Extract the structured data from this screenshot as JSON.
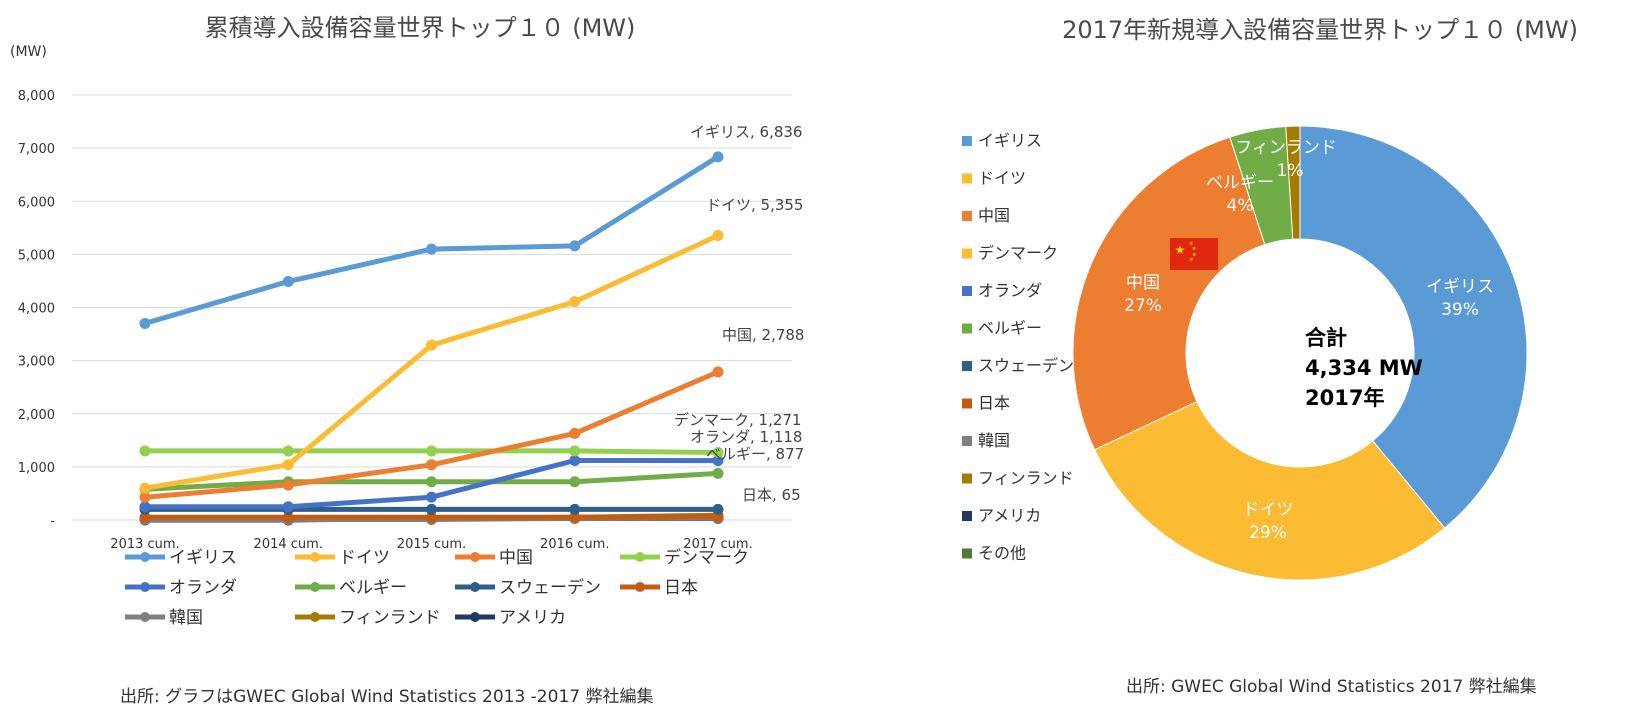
{
  "chart_data": [
    {
      "type": "line",
      "title": "累積導入設備容量世界トップ１０ (MW)",
      "ylabel": "(MW)",
      "ylim": [
        0,
        8000
      ],
      "yticks": [
        {
          "value": 0,
          "label": "-"
        },
        {
          "value": 1000,
          "label": "1,000"
        },
        {
          "value": 2000,
          "label": "2,000"
        },
        {
          "value": 3000,
          "label": "3,000"
        },
        {
          "value": 4000,
          "label": "4,000"
        },
        {
          "value": 5000,
          "label": "5,000"
        },
        {
          "value": 6000,
          "label": "6,000"
        },
        {
          "value": 7000,
          "label": "7,000"
        },
        {
          "value": 8000,
          "label": "8,000"
        }
      ],
      "categories": [
        "2013 cum.",
        "2014 cum.",
        "2015 cum.",
        "2016 cum.",
        "2017 cum."
      ],
      "series": [
        {
          "name": "イギリス",
          "color": "#5b9bd5",
          "values": [
            3700,
            4490,
            5100,
            5160,
            6836
          ],
          "label": "イギリス, 6,836"
        },
        {
          "name": "ドイツ",
          "color": "#fbbc33",
          "values": [
            600,
            1040,
            3290,
            4110,
            5355
          ],
          "label": "ドイツ, 5,355"
        },
        {
          "name": "中国",
          "color": "#ed7d31",
          "values": [
            430,
            660,
            1040,
            1630,
            2788
          ],
          "label": "中国, 2,788"
        },
        {
          "name": "デンマーク",
          "color": "#92d050",
          "values": [
            1300,
            1300,
            1300,
            1300,
            1271
          ],
          "label": "デンマーク, 1,271"
        },
        {
          "name": "オランダ",
          "color": "#4472c4",
          "values": [
            250,
            250,
            430,
            1120,
            1118
          ],
          "label": "オランダ, 1,118"
        },
        {
          "name": "ベルギー",
          "color": "#70ad47",
          "values": [
            580,
            720,
            720,
            720,
            877
          ],
          "label": "ベルギー, 877"
        },
        {
          "name": "スウェーデン",
          "color": "#2e5f8a",
          "values": [
            200,
            200,
            200,
            200,
            200
          ],
          "label": ""
        },
        {
          "name": "日本",
          "color": "#c55a11",
          "values": [
            50,
            50,
            50,
            50,
            65
          ],
          "label": "日本, 65"
        },
        {
          "name": "韓国",
          "color": "#7f7f7f",
          "values": [
            10,
            10,
            10,
            30,
            40
          ],
          "label": ""
        },
        {
          "name": "フィンランド",
          "color": "#a67c00",
          "values": [
            30,
            30,
            30,
            50,
            90
          ],
          "label": ""
        },
        {
          "name": "アメリカ",
          "color": "#203864",
          "values": [
            0,
            0,
            30,
            30,
            30
          ],
          "label": ""
        }
      ],
      "legend_position": "bottom",
      "source": "出所: グラフはGWEC Global Wind Statistics 2013 -2017 弊社編集"
    },
    {
      "type": "pie",
      "title": "2017年新規導入設備容量世界トップ１０ (MW)",
      "slices": [
        {
          "name": "イギリス",
          "value": 39,
          "color": "#5b9bd5",
          "label": "イギリス",
          "pct": "39%"
        },
        {
          "name": "ドイツ",
          "value": 29,
          "color": "#fbbc33",
          "label": "ドイツ",
          "pct": "29%"
        },
        {
          "name": "中国",
          "value": 27,
          "color": "#ed7d31",
          "label": "中国",
          "pct": "27%"
        },
        {
          "name": "ベルギー",
          "value": 4,
          "color": "#70ad47",
          "label": "ベルギー",
          "pct": "4%"
        },
        {
          "name": "フィンランド",
          "value": 1,
          "color": "#a67c00",
          "label": "フィンランド",
          "pct": "1%"
        }
      ],
      "legend": [
        {
          "name": "イギリス",
          "color": "#5b9bd5"
        },
        {
          "name": "ドイツ",
          "color": "#fbbc33"
        },
        {
          "name": "中国",
          "color": "#ed7d31"
        },
        {
          "name": "デンマーク",
          "color": "#fbbc33"
        },
        {
          "name": "オランダ",
          "color": "#4472c4"
        },
        {
          "name": "ベルギー",
          "color": "#70ad47"
        },
        {
          "name": "スウェーデン",
          "color": "#2e5f8a"
        },
        {
          "name": "日本",
          "color": "#c55a11"
        },
        {
          "name": "韓国",
          "color": "#7f7f7f"
        },
        {
          "name": "フィンランド",
          "color": "#a67c00"
        },
        {
          "name": "アメリカ",
          "color": "#203864"
        },
        {
          "name": "その他",
          "color": "#4e7a32"
        }
      ],
      "legend_position": "left",
      "center": {
        "line1": "合計",
        "line2": "4,334 MW",
        "line3": "2017年"
      },
      "source": "出所: GWEC Global Wind Statistics 2017 弊社編集"
    }
  ]
}
